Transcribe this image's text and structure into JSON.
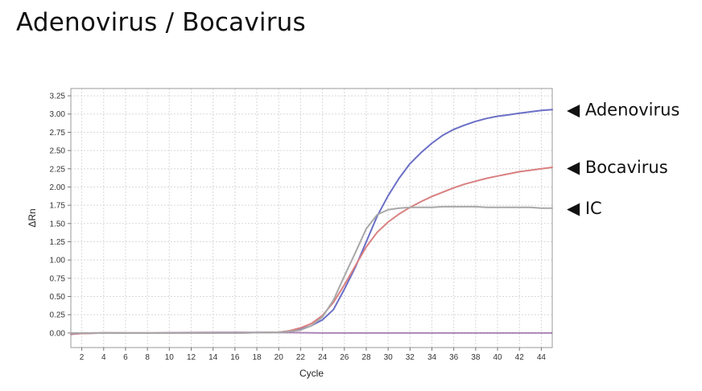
{
  "page": {
    "title": "Adenovirus / Bocavirus"
  },
  "chart_data": {
    "type": "line",
    "title": "",
    "xlabel": "Cycle",
    "ylabel": "ΔRn",
    "xlim": [
      1,
      45
    ],
    "ylim": [
      -0.2,
      3.35
    ],
    "grid": true,
    "x_ticks": [
      2,
      4,
      6,
      8,
      10,
      12,
      14,
      16,
      18,
      20,
      22,
      24,
      26,
      28,
      30,
      32,
      34,
      36,
      38,
      40,
      42,
      44
    ],
    "y_ticks": [
      0.0,
      0.25,
      0.5,
      0.75,
      1.0,
      1.25,
      1.5,
      1.75,
      2.0,
      2.25,
      2.5,
      2.75,
      3.0,
      3.25
    ],
    "y_tick_labels": [
      "0.00",
      "0.25",
      "0.50",
      "0.75",
      "1.00",
      "1.25",
      "1.50",
      "1.75",
      "2.00",
      "2.25",
      "2.50",
      "2.75",
      "3.00",
      "3.25"
    ],
    "series": [
      {
        "name": "Adenovirus",
        "label": "◀ Adenovirus",
        "color": "#6b6fc6",
        "x": [
          1,
          4,
          8,
          12,
          16,
          20,
          21,
          22,
          23,
          24,
          25,
          26,
          27,
          28,
          29,
          30,
          31,
          32,
          33,
          34,
          35,
          36,
          37,
          38,
          39,
          40,
          41,
          42,
          43,
          44,
          45
        ],
        "y": [
          -0.01,
          0.0,
          0.0,
          0.0,
          0.0,
          0.01,
          0.02,
          0.05,
          0.1,
          0.18,
          0.32,
          0.6,
          0.9,
          1.25,
          1.6,
          1.88,
          2.12,
          2.32,
          2.47,
          2.6,
          2.71,
          2.79,
          2.85,
          2.9,
          2.94,
          2.97,
          2.99,
          3.01,
          3.03,
          3.05,
          3.06
        ]
      },
      {
        "name": "Bocavirus",
        "label": "◀ Bocavirus",
        "color": "#d98080",
        "x": [
          1,
          4,
          8,
          12,
          16,
          20,
          21,
          22,
          23,
          24,
          25,
          26,
          27,
          28,
          29,
          30,
          31,
          32,
          33,
          34,
          35,
          36,
          37,
          38,
          39,
          40,
          41,
          42,
          43,
          44,
          45
        ],
        "y": [
          -0.01,
          0.0,
          0.0,
          0.0,
          0.0,
          0.01,
          0.03,
          0.07,
          0.13,
          0.24,
          0.42,
          0.66,
          0.92,
          1.18,
          1.38,
          1.52,
          1.63,
          1.72,
          1.8,
          1.87,
          1.93,
          1.99,
          2.04,
          2.08,
          2.12,
          2.15,
          2.18,
          2.21,
          2.23,
          2.25,
          2.27
        ]
      },
      {
        "name": "IC",
        "label": "◀ IC",
        "color": "#a8a8a8",
        "x": [
          1,
          4,
          8,
          12,
          16,
          20,
          21,
          22,
          23,
          24,
          25,
          26,
          27,
          28,
          29,
          30,
          31,
          32,
          33,
          34,
          35,
          36,
          37,
          38,
          39,
          40,
          41,
          42,
          43,
          44,
          45
        ],
        "y": [
          0.0,
          0.0,
          0.0,
          0.0,
          0.0,
          0.01,
          0.02,
          0.04,
          0.1,
          0.22,
          0.45,
          0.78,
          1.1,
          1.43,
          1.62,
          1.69,
          1.71,
          1.72,
          1.72,
          1.72,
          1.73,
          1.73,
          1.73,
          1.73,
          1.72,
          1.72,
          1.72,
          1.72,
          1.72,
          1.71,
          1.71
        ]
      }
    ]
  }
}
